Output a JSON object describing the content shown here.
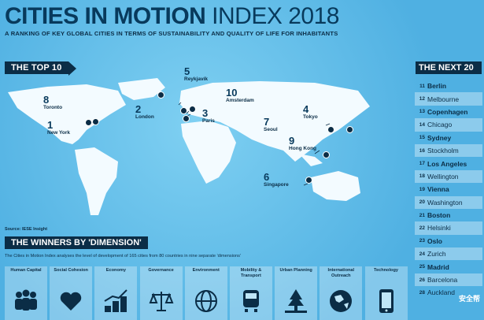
{
  "header": {
    "title_bold": "CITIES IN MOTION",
    "title_light": " INDEX 2018",
    "subtitle": "A RANKING OF KEY GLOBAL CITIES IN TERMS OF SUSTAINABILITY AND QUALITY OF LIFE FOR INHABITANTS"
  },
  "top10": {
    "label": "THE TOP 10",
    "cities": [
      {
        "rank": "1",
        "name": "New York"
      },
      {
        "rank": "2",
        "name": "London"
      },
      {
        "rank": "3",
        "name": "Paris"
      },
      {
        "rank": "4",
        "name": "Tokyo"
      },
      {
        "rank": "5",
        "name": "Reykjavík"
      },
      {
        "rank": "6",
        "name": "Singapore"
      },
      {
        "rank": "7",
        "name": "Seoul"
      },
      {
        "rank": "8",
        "name": "Toronto"
      },
      {
        "rank": "9",
        "name": "Hong Kong"
      },
      {
        "rank": "10",
        "name": "Amsterdam"
      }
    ]
  },
  "next20": {
    "label": "THE NEXT 20",
    "cities": [
      {
        "rank": "11",
        "name": "Berlin",
        "bold": true
      },
      {
        "rank": "12",
        "name": "Melbourne",
        "bold": false
      },
      {
        "rank": "13",
        "name": "Copenhagen",
        "bold": true
      },
      {
        "rank": "14",
        "name": "Chicago",
        "bold": false
      },
      {
        "rank": "15",
        "name": "Sydney",
        "bold": true
      },
      {
        "rank": "16",
        "name": "Stockholm",
        "bold": false
      },
      {
        "rank": "17",
        "name": "Los Angeles",
        "bold": true
      },
      {
        "rank": "18",
        "name": "Wellington",
        "bold": false
      },
      {
        "rank": "19",
        "name": "Vienna",
        "bold": true
      },
      {
        "rank": "20",
        "name": "Washington",
        "bold": false
      },
      {
        "rank": "21",
        "name": "Boston",
        "bold": true
      },
      {
        "rank": "22",
        "name": "Helsinki",
        "bold": false
      },
      {
        "rank": "23",
        "name": "Oslo",
        "bold": true
      },
      {
        "rank": "24",
        "name": "Zurich",
        "bold": false
      },
      {
        "rank": "25",
        "name": "Madrid",
        "bold": true
      },
      {
        "rank": "26",
        "name": "Barcelona",
        "bold": false
      },
      {
        "rank": "28",
        "name": "Auckland",
        "bold": false
      }
    ]
  },
  "source": "Source: IESE Insight",
  "winners": {
    "label": "THE WINNERS BY 'DIMENSION'",
    "description": "The Cities in Motion Index analyses the level of development of 165 cities from 80 countries in nine separate 'dimensions'",
    "dimensions": [
      {
        "label": "Human Capital",
        "icon": "people-icon"
      },
      {
        "label": "Social Cohesion",
        "icon": "heart-hands-icon"
      },
      {
        "label": "Economy",
        "icon": "coins-chart-icon"
      },
      {
        "label": "Governance",
        "icon": "scales-icon"
      },
      {
        "label": "Environment",
        "icon": "globe-leaf-icon"
      },
      {
        "label": "Mobility & Transport",
        "icon": "train-icon"
      },
      {
        "label": "Urban Planning",
        "icon": "tree-buildings-icon"
      },
      {
        "label": "International Outreach",
        "icon": "globe-icon"
      },
      {
        "label": "Technology",
        "icon": "smartphone-icon"
      }
    ]
  },
  "watermark": "安全帮"
}
